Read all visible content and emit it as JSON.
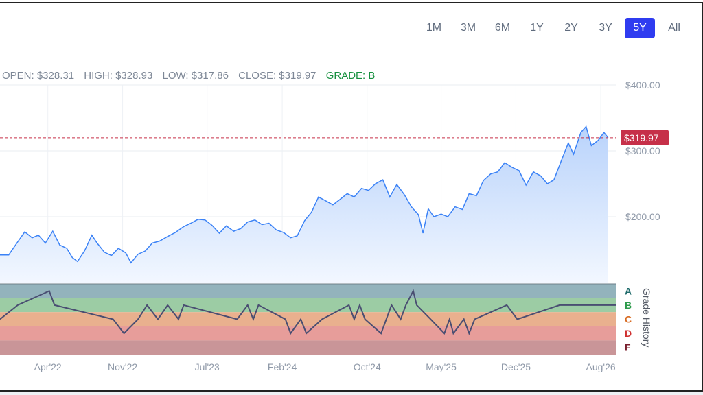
{
  "range_selector": {
    "options": [
      "1M",
      "3M",
      "6M",
      "1Y",
      "2Y",
      "3Y",
      "5Y",
      "All"
    ],
    "active": "5Y"
  },
  "ohlc": {
    "open": "OPEN: $328.31",
    "high": "HIGH: $328.93",
    "low": "LOW: $317.86",
    "close": "CLOSE: $319.97",
    "grade": "GRADE: B"
  },
  "colors": {
    "line": "#3b82f6",
    "area_top": "#b9d3fb",
    "area_bottom": "#f2f7ff",
    "last_price": "#c63049",
    "grade_line": "#4a4e72",
    "active_button": "#2f3cf0",
    "grade_A": "#1f6b6b",
    "grade_B": "#2c9a4a",
    "grade_C": "#d86b22",
    "grade_D": "#cf3030",
    "grade_F": "#7a1f2d",
    "band_A": "#93b3bc",
    "band_B": "#9ccca4",
    "band_C": "#e9b08e",
    "band_D": "#e79d9a",
    "band_F": "#c99598"
  },
  "chart_data": {
    "type": "line",
    "title": "",
    "xlabel": "",
    "ylabel": "",
    "last_price_label": "$319.97",
    "last_price": 319.97,
    "ylim": [
      100,
      400
    ],
    "y_ticks": [
      {
        "value": 400,
        "label": "$400.00"
      },
      {
        "value": 300,
        "label": "$300.00"
      },
      {
        "value": 200,
        "label": "$200.00"
      }
    ],
    "x_range": [
      "2021-11-15",
      "2026-09-15"
    ],
    "x_ticks": [
      {
        "date": "2022-04-01",
        "label": "Apr'22"
      },
      {
        "date": "2022-11-01",
        "label": "Nov'22"
      },
      {
        "date": "2023-07-01",
        "label": "Jul'23"
      },
      {
        "date": "2024-02-01",
        "label": "Feb'24"
      },
      {
        "date": "2024-10-01",
        "label": "Oct'24"
      },
      {
        "date": "2025-05-01",
        "label": "May'25"
      },
      {
        "date": "2025-12-01",
        "label": "Dec'25"
      },
      {
        "date": "2026-08-01",
        "label": "Aug'26"
      }
    ],
    "series": [
      {
        "values": [
          [
            "2021-11-15",
            142
          ],
          [
            "2021-12-10",
            142
          ],
          [
            "2022-01-05",
            162
          ],
          [
            "2022-01-25",
            177
          ],
          [
            "2022-02-15",
            168
          ],
          [
            "2022-03-05",
            172
          ],
          [
            "2022-03-25",
            160
          ],
          [
            "2022-04-15",
            178
          ],
          [
            "2022-05-05",
            157
          ],
          [
            "2022-05-25",
            152
          ],
          [
            "2022-06-10",
            138
          ],
          [
            "2022-06-25",
            132
          ],
          [
            "2022-07-15",
            148
          ],
          [
            "2022-08-05",
            172
          ],
          [
            "2022-08-20",
            160
          ],
          [
            "2022-09-10",
            146
          ],
          [
            "2022-09-30",
            141
          ],
          [
            "2022-10-20",
            152
          ],
          [
            "2022-11-10",
            145
          ],
          [
            "2022-11-25",
            130
          ],
          [
            "2022-12-15",
            143
          ],
          [
            "2023-01-05",
            148
          ],
          [
            "2023-01-25",
            160
          ],
          [
            "2023-02-15",
            163
          ],
          [
            "2023-03-10",
            170
          ],
          [
            "2023-04-01",
            176
          ],
          [
            "2023-04-25",
            185
          ],
          [
            "2023-05-15",
            190
          ],
          [
            "2023-06-05",
            196
          ],
          [
            "2023-06-25",
            195
          ],
          [
            "2023-07-15",
            187
          ],
          [
            "2023-08-05",
            175
          ],
          [
            "2023-08-25",
            186
          ],
          [
            "2023-09-15",
            178
          ],
          [
            "2023-10-05",
            182
          ],
          [
            "2023-10-25",
            192
          ],
          [
            "2023-11-15",
            195
          ],
          [
            "2023-12-05",
            188
          ],
          [
            "2023-12-25",
            190
          ],
          [
            "2024-01-15",
            180
          ],
          [
            "2024-02-05",
            176
          ],
          [
            "2024-02-25",
            168
          ],
          [
            "2024-03-15",
            171
          ],
          [
            "2024-04-05",
            194
          ],
          [
            "2024-04-25",
            207
          ],
          [
            "2024-05-15",
            230
          ],
          [
            "2024-06-05",
            224
          ],
          [
            "2024-06-25",
            218
          ],
          [
            "2024-07-15",
            226
          ],
          [
            "2024-08-05",
            235
          ],
          [
            "2024-08-25",
            230
          ],
          [
            "2024-09-15",
            243
          ],
          [
            "2024-10-05",
            240
          ],
          [
            "2024-10-25",
            250
          ],
          [
            "2024-11-15",
            256
          ],
          [
            "2024-12-05",
            230
          ],
          [
            "2024-12-25",
            249
          ],
          [
            "2025-01-15",
            234
          ],
          [
            "2025-02-05",
            215
          ],
          [
            "2025-02-25",
            203
          ],
          [
            "2025-03-10",
            175
          ],
          [
            "2025-03-25",
            212
          ],
          [
            "2025-04-10",
            200
          ],
          [
            "2025-05-01",
            204
          ],
          [
            "2025-05-20",
            200
          ],
          [
            "2025-06-10",
            215
          ],
          [
            "2025-07-01",
            211
          ],
          [
            "2025-07-20",
            235
          ],
          [
            "2025-08-10",
            232
          ],
          [
            "2025-08-30",
            255
          ],
          [
            "2025-09-20",
            265
          ],
          [
            "2025-10-10",
            268
          ],
          [
            "2025-10-30",
            282
          ],
          [
            "2025-11-20",
            275
          ],
          [
            "2025-12-10",
            270
          ],
          [
            "2025-12-30",
            248
          ],
          [
            "2026-01-20",
            268
          ],
          [
            "2026-02-10",
            262
          ],
          [
            "2026-03-01",
            250
          ],
          [
            "2026-03-20",
            256
          ],
          [
            "2026-04-10",
            285
          ],
          [
            "2026-04-30",
            312
          ],
          [
            "2026-05-15",
            295
          ],
          [
            "2026-06-05",
            328
          ],
          [
            "2026-06-20",
            337
          ],
          [
            "2026-07-05",
            308
          ],
          [
            "2026-07-25",
            316
          ],
          [
            "2026-08-10",
            328
          ],
          [
            "2026-08-22",
            319.97
          ]
        ]
      }
    ],
    "grade_history": {
      "label": "Grade History",
      "grades": [
        "A",
        "B",
        "C",
        "D",
        "F"
      ],
      "steps": [
        [
          "2021-11-15",
          "C"
        ],
        [
          "2022-01-05",
          "B"
        ],
        [
          "2022-04-05",
          "A"
        ],
        [
          "2022-04-20",
          "B"
        ],
        [
          "2022-10-05",
          "C"
        ],
        [
          "2022-11-05",
          "D"
        ],
        [
          "2022-12-15",
          "C"
        ],
        [
          "2023-01-10",
          "B"
        ],
        [
          "2023-02-10",
          "C"
        ],
        [
          "2023-03-10",
          "B"
        ],
        [
          "2023-04-10",
          "C"
        ],
        [
          "2023-04-25",
          "B"
        ],
        [
          "2023-09-25",
          "C"
        ],
        [
          "2023-10-25",
          "B"
        ],
        [
          "2023-11-10",
          "C"
        ],
        [
          "2023-11-25",
          "B"
        ],
        [
          "2024-02-10",
          "C"
        ],
        [
          "2024-02-25",
          "D"
        ],
        [
          "2024-03-25",
          "C"
        ],
        [
          "2024-04-10",
          "D"
        ],
        [
          "2024-05-25",
          "C"
        ],
        [
          "2024-08-10",
          "B"
        ],
        [
          "2024-08-25",
          "C"
        ],
        [
          "2024-09-10",
          "B"
        ],
        [
          "2024-09-25",
          "C"
        ],
        [
          "2024-11-10",
          "D"
        ],
        [
          "2024-11-25",
          "C"
        ],
        [
          "2024-12-10",
          "B"
        ],
        [
          "2025-01-05",
          "C"
        ],
        [
          "2025-01-20",
          "B"
        ],
        [
          "2025-02-10",
          "A"
        ],
        [
          "2025-02-20",
          "B"
        ],
        [
          "2025-04-01",
          "C"
        ],
        [
          "2025-05-10",
          "D"
        ],
        [
          "2025-05-25",
          "C"
        ],
        [
          "2025-06-05",
          "D"
        ],
        [
          "2025-07-05",
          "C"
        ],
        [
          "2025-07-20",
          "D"
        ],
        [
          "2025-08-05",
          "C"
        ],
        [
          "2025-11-05",
          "B"
        ],
        [
          "2025-12-05",
          "C"
        ],
        [
          "2026-04-05",
          "B"
        ],
        [
          "2026-09-15",
          "B"
        ]
      ]
    }
  }
}
